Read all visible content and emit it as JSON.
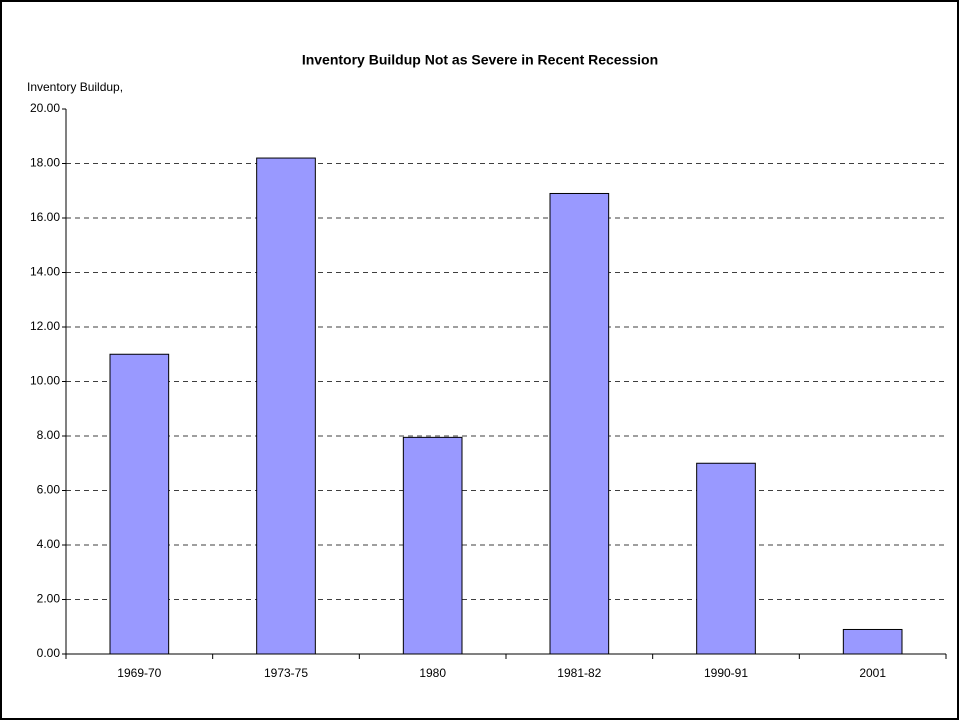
{
  "chart_data": {
    "type": "bar",
    "title": "Inventory Buildup Not as Severe in Recent Recession",
    "y_label": "Inventory Buildup,",
    "categories": [
      "1969-70",
      "1973-75",
      "1980",
      "1981-82",
      "1990-91",
      "2001"
    ],
    "values": [
      11.0,
      18.2,
      7.95,
      16.9,
      7.0,
      0.9
    ],
    "color": "#9999ff",
    "ylim": [
      0,
      20
    ],
    "yticks": [
      {
        "value": 0,
        "label": "0.00"
      },
      {
        "value": 2,
        "label": "2.00"
      },
      {
        "value": 4,
        "label": "4.00"
      },
      {
        "value": 6,
        "label": "6.00"
      },
      {
        "value": 8,
        "label": "8.00"
      },
      {
        "value": 10,
        "label": "10.00"
      },
      {
        "value": 12,
        "label": "12.00"
      },
      {
        "value": 14,
        "label": "14.00"
      },
      {
        "value": 16,
        "label": "16.00"
      },
      {
        "value": 18,
        "label": "18.00"
      },
      {
        "value": 20,
        "label": "20.00"
      }
    ],
    "grid": true
  }
}
